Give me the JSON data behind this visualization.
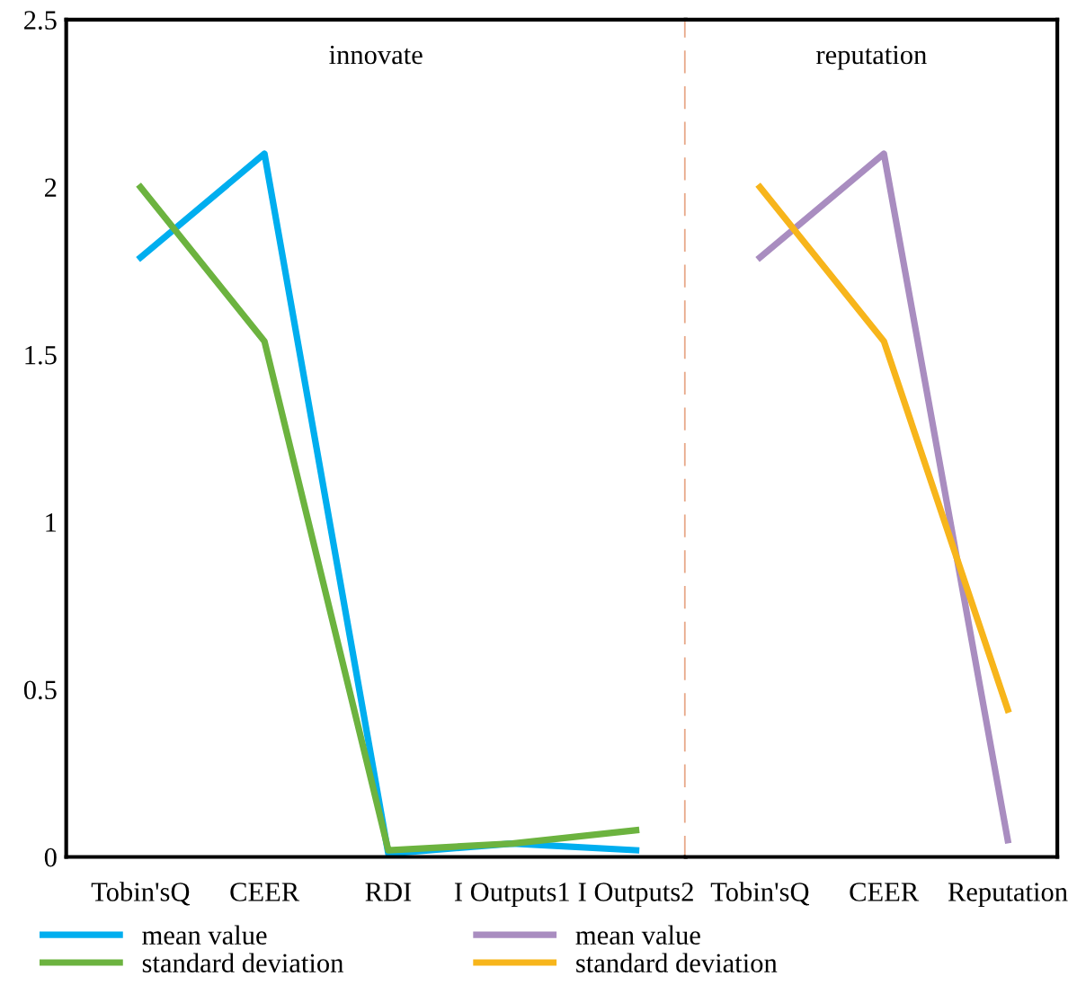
{
  "chart_data": [
    {
      "type": "line",
      "categories": [
        "Tobin'sQ",
        "CEER",
        "RDI",
        "I Outputs1",
        "I Outputs2"
      ],
      "series": [
        {
          "name": "mean value",
          "color": "#00aeef",
          "values": [
            1.79,
            2.1,
            0.01,
            0.04,
            0.02
          ]
        },
        {
          "name": "standard deviation",
          "color": "#6cb33f",
          "values": [
            2.0,
            1.54,
            0.02,
            0.04,
            0.08
          ]
        }
      ],
      "ylim": [
        0,
        2.5
      ],
      "yticks": [
        0,
        0.5,
        1,
        1.5,
        2,
        2.5
      ],
      "annotations": [
        "innovate"
      ],
      "grid": false,
      "legend": "bottom",
      "marker": "none",
      "line_style": "solid"
    },
    {
      "type": "line",
      "categories": [
        "Tobin'sQ",
        "CEER",
        "Reputation"
      ],
      "series": [
        {
          "name": "mean value",
          "color": "#a98dc0",
          "values": [
            1.79,
            2.1,
            0.05
          ]
        },
        {
          "name": "standard deviation",
          "color": "#f7b51b",
          "values": [
            2.0,
            1.54,
            0.44
          ]
        }
      ],
      "ylim": [
        0,
        2.5
      ],
      "tick_labels": "x",
      "annotations": [
        "reputation"
      ],
      "grid": false,
      "legend": "bottom",
      "marker": "none",
      "line_style": "solid"
    }
  ]
}
